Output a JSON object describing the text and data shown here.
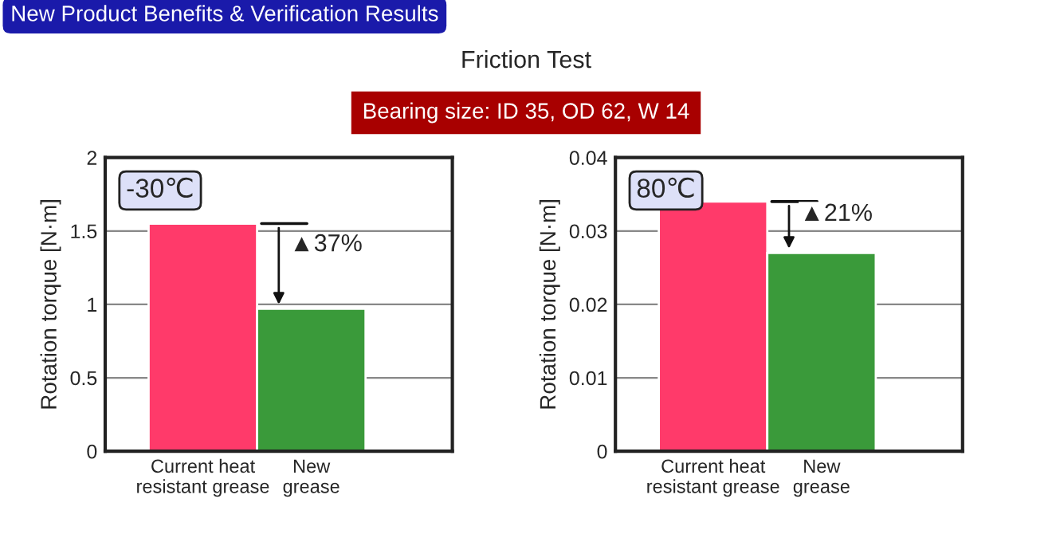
{
  "chart_data": [
    {
      "type": "other",
      "title": "Friction Test",
      "subtitle": "Bearing size: ID 35, OD 62, W 14",
      "annotations": [
        "New Product Benefits & Verification Results"
      ]
    },
    {
      "type": "bar",
      "annotations": [
        "-30℃",
        "▲37%"
      ],
      "ylabel": "Rotation torque [N·m]",
      "categories": [
        "Current heat\nresistant grease",
        "New\ngrease"
      ],
      "values": [
        1.55,
        0.97
      ],
      "colors": [
        "#ff3a6a",
        "#3a9a3a"
      ],
      "ylim": [
        0,
        2
      ],
      "yticks": [
        0,
        0.5,
        1,
        1.5,
        2
      ],
      "grid": "y"
    },
    {
      "type": "bar",
      "annotations": [
        "80℃",
        "▲21%"
      ],
      "ylabel": "Rotation torque [N·m]",
      "categories": [
        "Current heat\nresistant grease",
        "New\ngrease"
      ],
      "values": [
        0.034,
        0.027
      ],
      "colors": [
        "#ff3a6a",
        "#3a9a3a"
      ],
      "ylim": [
        0,
        0.04
      ],
      "yticks": [
        0,
        0.01,
        0.02,
        0.03,
        0.04
      ],
      "grid": "y"
    }
  ]
}
